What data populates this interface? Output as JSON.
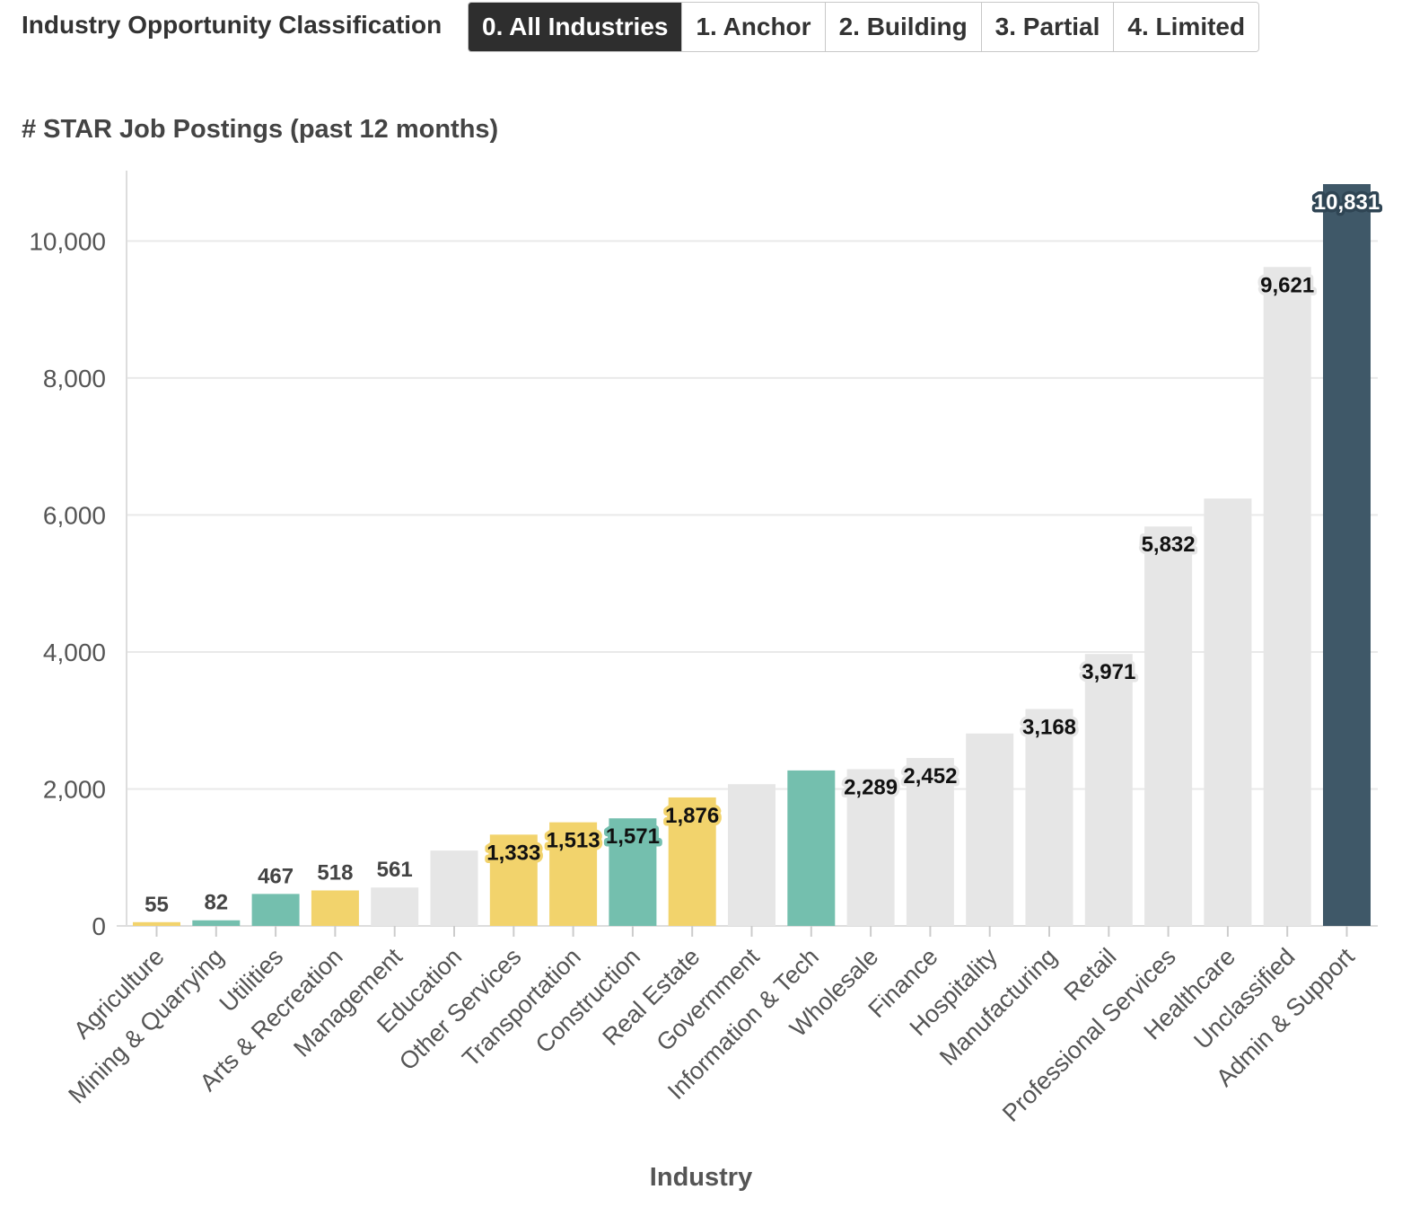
{
  "filter": {
    "label": "Industry Opportunity Classification",
    "options": [
      "0. All Industries",
      "1. Anchor",
      "2. Building",
      "3. Partial",
      "4. Limited"
    ],
    "selected_index": 0
  },
  "colors": {
    "anchor": "#74bfae",
    "partial": "#f2d36c",
    "limited": "#e6e6e6",
    "highlight": "#3f5868",
    "gridline": "#e9e9e9"
  },
  "chart_data": {
    "type": "bar",
    "title": "# STAR Job Postings (past 12 months)",
    "xlabel": "Industry",
    "ylabel": "",
    "ylim": [
      0,
      10831
    ],
    "yticks": [
      0,
      2000,
      4000,
      6000,
      8000,
      10000
    ],
    "ytick_labels": [
      "0",
      "2,000",
      "4,000",
      "6,000",
      "8,000",
      "10,000"
    ],
    "grid": true,
    "categories": [
      "Agriculture",
      "Mining & Quarrying",
      "Utilities",
      "Arts & Recreation",
      "Management",
      "Education",
      "Other Services",
      "Transportation",
      "Construction",
      "Real Estate",
      "Government",
      "Information & Tech",
      "Wholesale",
      "Finance",
      "Hospitality",
      "Manufacturing",
      "Retail",
      "Professional Services",
      "Healthcare",
      "Unclassified",
      "Admin & Support"
    ],
    "values": [
      55,
      82,
      467,
      518,
      561,
      1100,
      1333,
      1513,
      1571,
      1876,
      2070,
      2270,
      2289,
      2452,
      2810,
      3168,
      3971,
      5832,
      6240,
      9621,
      10831
    ],
    "color_keys": [
      "partial",
      "anchor",
      "anchor",
      "partial",
      "limited",
      "limited",
      "partial",
      "partial",
      "anchor",
      "partial",
      "limited",
      "anchor",
      "limited",
      "limited",
      "limited",
      "limited",
      "limited",
      "limited",
      "limited",
      "limited",
      "highlight"
    ],
    "data_labels": [
      "55",
      "82",
      "467",
      "518",
      "561",
      null,
      "1,333",
      "1,513",
      "1,571",
      "1,876",
      null,
      null,
      "2,289",
      "2,452",
      null,
      "3,168",
      "3,971",
      "5,832",
      null,
      "9,621",
      "10,831"
    ]
  }
}
